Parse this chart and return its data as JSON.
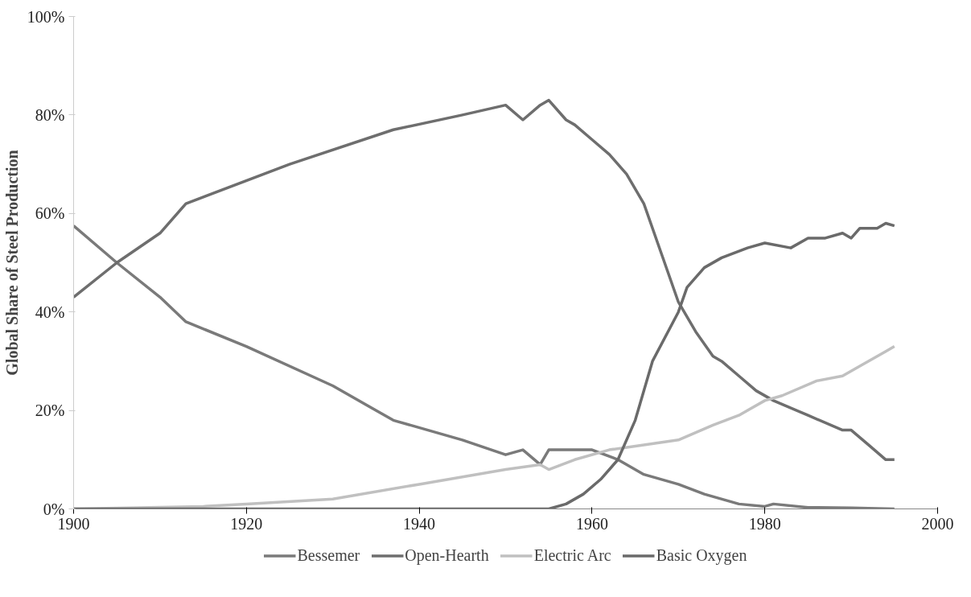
{
  "chart_data": {
    "type": "line",
    "ylabel": "Global Share of Steel Production",
    "xlim": [
      1900,
      2000
    ],
    "xticks": [
      1900,
      1920,
      1940,
      1960,
      1980,
      2000
    ],
    "ylim": [
      0,
      100
    ],
    "yticks": [
      {
        "value": 0,
        "label": "0%"
      },
      {
        "value": 20,
        "label": "20%"
      },
      {
        "value": 40,
        "label": "40%"
      },
      {
        "value": 60,
        "label": "60%"
      },
      {
        "value": 80,
        "label": "80%"
      },
      {
        "value": 100,
        "label": "100%"
      }
    ],
    "grid": false,
    "legend": "bottom",
    "marker": "none",
    "line_style": "solid",
    "series": [
      {
        "name": "Bessemer",
        "color": "#7a7a7a",
        "x": [
          1900,
          1905,
          1910,
          1913,
          1920,
          1930,
          1937,
          1945,
          1950,
          1952,
          1954,
          1955,
          1958,
          1960,
          1963,
          1966,
          1970,
          1973,
          1977,
          1980,
          1981,
          1985,
          1990,
          1995
        ],
        "values": [
          57.5,
          50,
          43,
          38,
          33,
          25,
          18,
          14,
          11,
          12,
          9,
          12,
          12,
          12,
          10,
          7,
          5,
          3,
          1,
          0.5,
          1,
          0.3,
          0.2,
          0
        ]
      },
      {
        "name": "Open-Hearth",
        "color": "#6e6e6e",
        "x": [
          1900,
          1905,
          1910,
          1913,
          1925,
          1937,
          1945,
          1950,
          1952,
          1954,
          1955,
          1957,
          1958,
          1960,
          1962,
          1964,
          1966,
          1968,
          1970,
          1972,
          1974,
          1975,
          1977,
          1979,
          1981,
          1985,
          1989,
          1990,
          1992,
          1994,
          1995
        ],
        "values": [
          43,
          50,
          56,
          62,
          70,
          77,
          80,
          82,
          79,
          82,
          83,
          79,
          78,
          75,
          72,
          68,
          62,
          52,
          42,
          36,
          31,
          30,
          27,
          24,
          22,
          19,
          16,
          16,
          13,
          10,
          10
        ]
      },
      {
        "name": "Electric Arc",
        "color": "#c0c0c0",
        "x": [
          1900,
          1915,
          1920,
          1930,
          1940,
          1950,
          1954,
          1955,
          1958,
          1962,
          1966,
          1970,
          1974,
          1977,
          1980,
          1982,
          1986,
          1989,
          1991,
          1994,
          1995
        ],
        "values": [
          0,
          0.5,
          1,
          2,
          5,
          8,
          9,
          8,
          10,
          12,
          13,
          14,
          17,
          19,
          22,
          23,
          26,
          27,
          29,
          32,
          33
        ]
      },
      {
        "name": "Basic Oxygen",
        "color": "#6a6a6a",
        "x": [
          1900,
          1955,
          1957,
          1959,
          1961,
          1963,
          1965,
          1967,
          1970,
          1971,
          1973,
          1975,
          1978,
          1980,
          1983,
          1985,
          1987,
          1989,
          1990,
          1991,
          1993,
          1994,
          1995
        ],
        "values": [
          0,
          0,
          1,
          3,
          6,
          10,
          18,
          30,
          40,
          45,
          49,
          51,
          53,
          54,
          53,
          55,
          55,
          56,
          55,
          57,
          57,
          58,
          57.5
        ]
      }
    ]
  }
}
